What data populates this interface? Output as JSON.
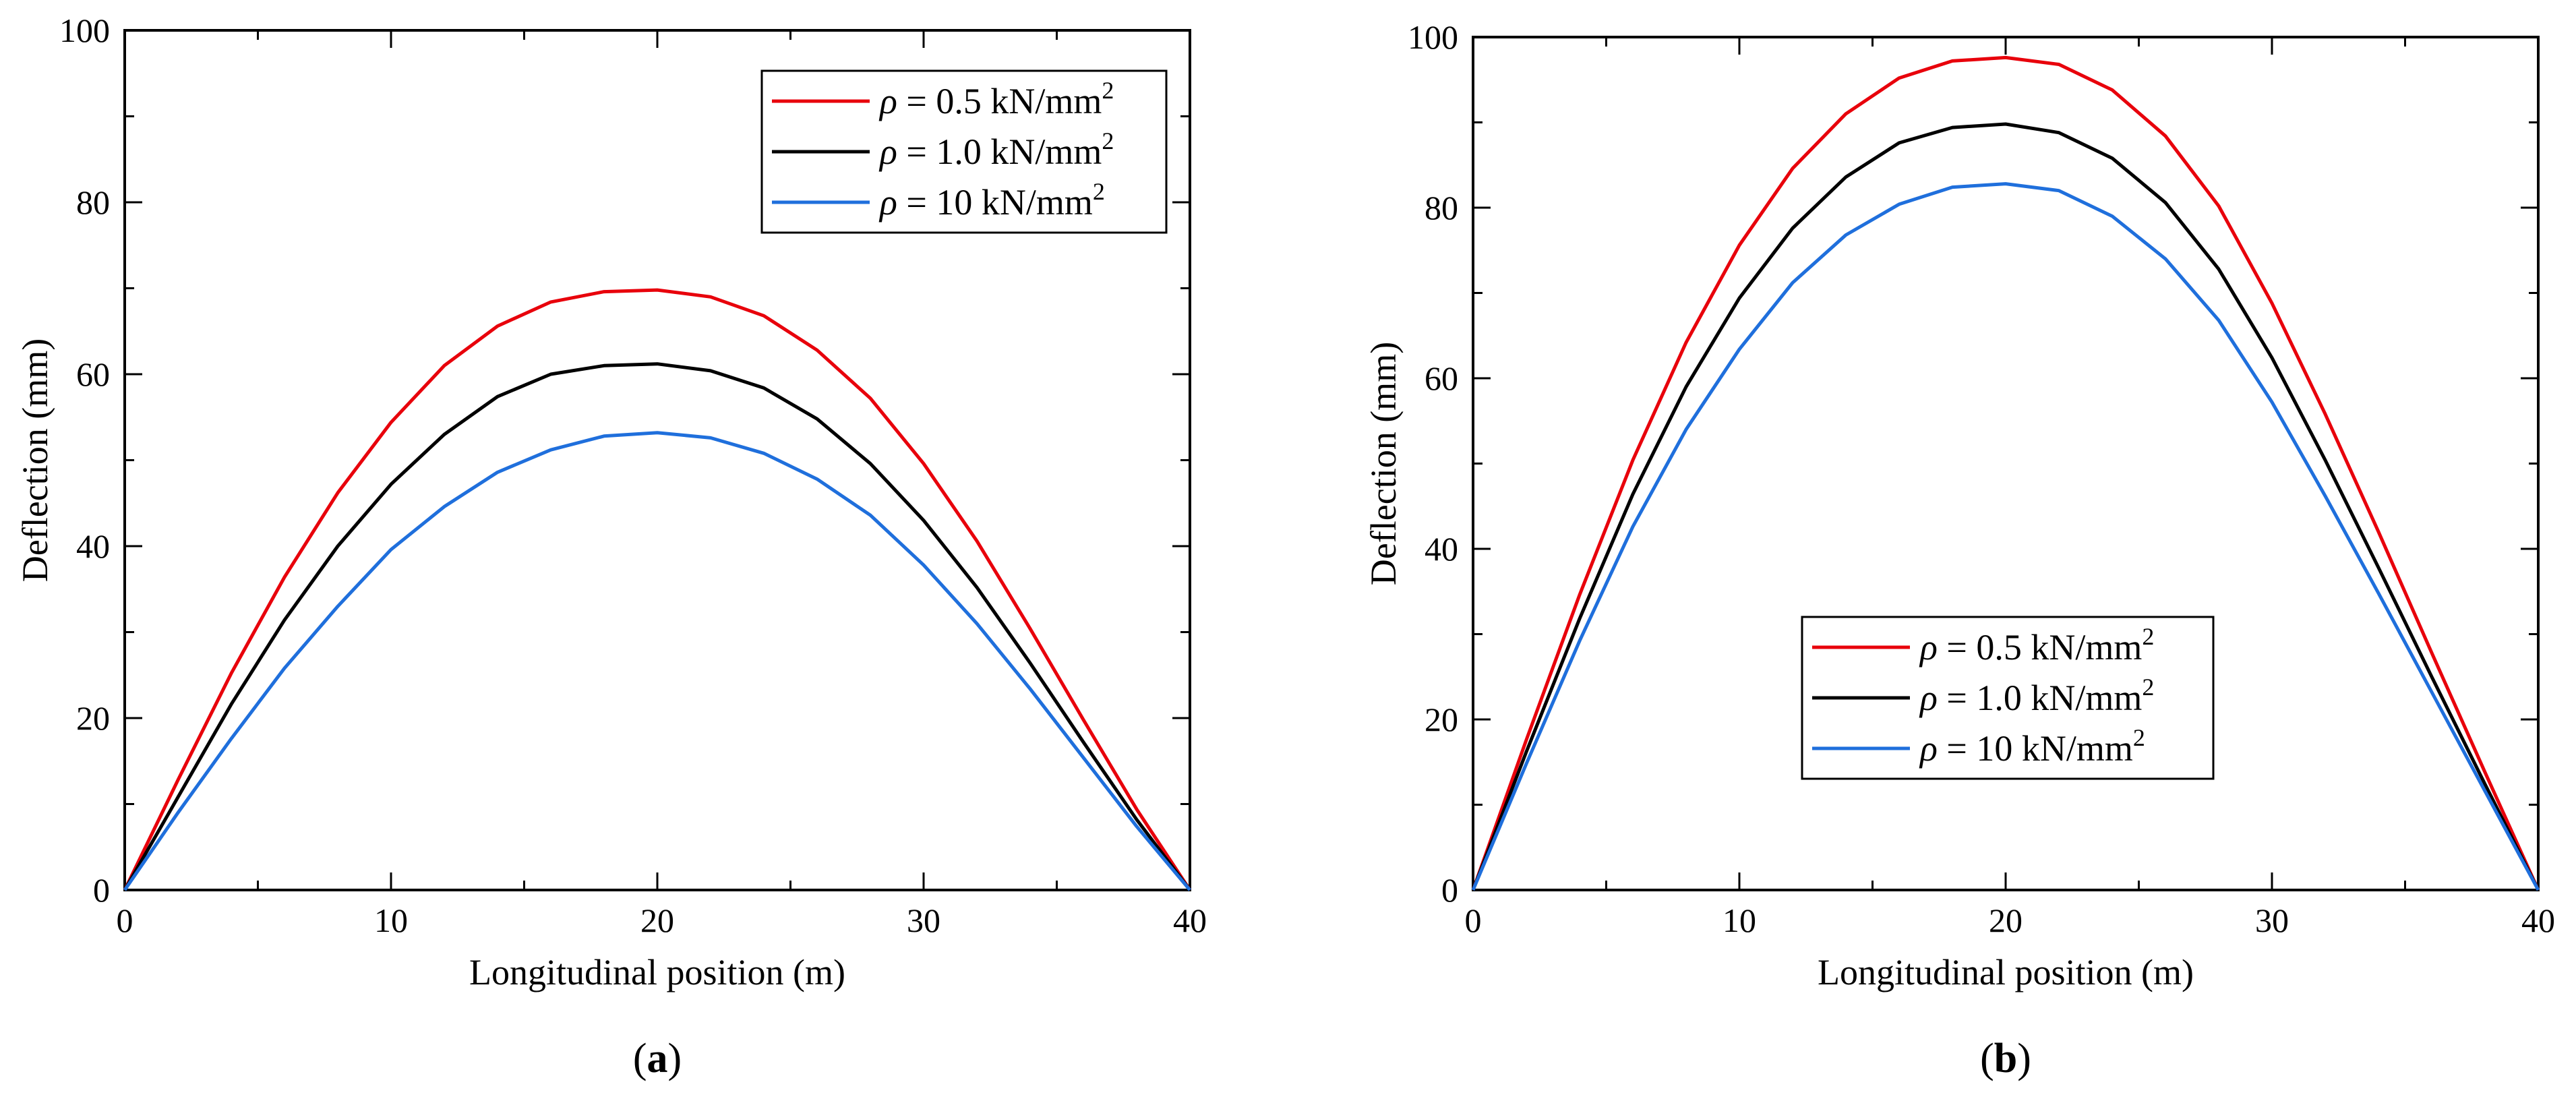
{
  "colors": {
    "red": "#e8000b",
    "black": "#000000",
    "blue": "#1f6fdc"
  },
  "chart_data": [
    {
      "type": "line",
      "panel_label": {
        "open": "(",
        "letter": "a",
        "close": ")"
      },
      "xlabel": "Longitudinal position (m)",
      "ylabel": "Deflection (mm)",
      "xlim": [
        0,
        40
      ],
      "ylim": [
        0,
        100
      ],
      "xticks": [
        0,
        10,
        20,
        30,
        40
      ],
      "yticks": [
        0,
        20,
        40,
        60,
        80,
        100
      ],
      "grid": false,
      "legend_position": "top-right",
      "x": [
        0,
        2,
        4,
        6,
        8,
        10,
        12,
        14,
        16,
        18,
        20,
        22,
        24,
        26,
        28,
        30,
        32,
        34,
        36,
        38,
        40
      ],
      "series": [
        {
          "name": "ρ = 0.5 kN/mm²",
          "name_parts": [
            "ρ",
            " = 0.5 kN/mm",
            "2"
          ],
          "color": "#e8000b",
          "values": [
            0,
            12.8,
            25.2,
            36.4,
            46.2,
            54.4,
            61.0,
            65.6,
            68.4,
            69.6,
            69.8,
            69.0,
            66.8,
            62.8,
            57.2,
            49.6,
            40.6,
            30.4,
            19.8,
            9.4,
            0
          ]
        },
        {
          "name": "ρ = 1.0 kN/mm²",
          "name_parts": [
            "ρ",
            " = 1.0 kN/mm",
            "2"
          ],
          "color": "#000000",
          "values": [
            0,
            10.8,
            21.6,
            31.4,
            40.0,
            47.2,
            53.0,
            57.4,
            60.0,
            61.0,
            61.2,
            60.4,
            58.4,
            54.8,
            49.6,
            43.0,
            35.2,
            26.4,
            17.2,
            8.2,
            0
          ]
        },
        {
          "name": "ρ = 10 kN/mm²",
          "name_parts": [
            "ρ",
            " = 10 kN/mm",
            "2"
          ],
          "color": "#1f6fdc",
          "values": [
            0,
            9.0,
            17.6,
            25.8,
            33.0,
            39.6,
            44.6,
            48.6,
            51.2,
            52.8,
            53.2,
            52.6,
            50.8,
            47.8,
            43.6,
            37.8,
            31.0,
            23.4,
            15.4,
            7.4,
            0
          ]
        }
      ]
    },
    {
      "type": "line",
      "panel_label": {
        "open": "(",
        "letter": "b",
        "close": ")"
      },
      "xlabel": "Longitudinal position (m)",
      "ylabel": "Deflection (mm)",
      "xlim": [
        0,
        40
      ],
      "ylim": [
        0,
        100
      ],
      "xticks": [
        0,
        10,
        20,
        30,
        40
      ],
      "yticks": [
        0,
        20,
        40,
        60,
        80,
        100
      ],
      "grid": false,
      "legend_position": "bottom-center",
      "x": [
        0,
        2,
        4,
        6,
        8,
        10,
        12,
        14,
        16,
        18,
        20,
        22,
        24,
        26,
        28,
        30,
        32,
        34,
        36,
        38,
        40
      ],
      "series": [
        {
          "name": "ρ = 0.5 kN/mm²",
          "name_parts": [
            "ρ",
            " = 0.5 kN/mm",
            "2"
          ],
          "color": "#e8000b",
          "values": [
            0,
            17.6,
            34.6,
            50.4,
            64.2,
            75.6,
            84.6,
            91.0,
            95.2,
            97.2,
            97.6,
            96.8,
            93.8,
            88.4,
            80.2,
            68.8,
            55.8,
            42.0,
            27.8,
            13.8,
            0
          ]
        },
        {
          "name": "ρ = 1.0 kN/mm²",
          "name_parts": [
            "ρ",
            " = 1.0 kN/mm",
            "2"
          ],
          "color": "#000000",
          "values": [
            0,
            16.2,
            31.8,
            46.4,
            59.0,
            69.4,
            77.6,
            83.6,
            87.6,
            89.4,
            89.8,
            88.8,
            85.8,
            80.6,
            72.8,
            62.4,
            50.4,
            37.8,
            25.0,
            12.4,
            0
          ]
        },
        {
          "name": "ρ = 10 kN/mm²",
          "name_parts": [
            "ρ",
            " = 10 kN/mm",
            "2"
          ],
          "color": "#1f6fdc",
          "values": [
            0,
            14.8,
            29.2,
            42.6,
            54.0,
            63.4,
            71.2,
            76.8,
            80.4,
            82.4,
            82.8,
            82.0,
            79.0,
            74.0,
            66.8,
            57.2,
            46.2,
            34.8,
            23.2,
            11.6,
            0
          ]
        }
      ]
    }
  ]
}
